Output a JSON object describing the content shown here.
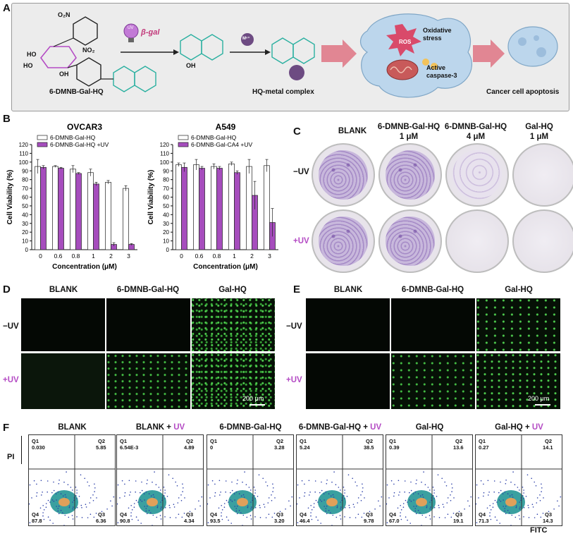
{
  "panels": {
    "A": "A",
    "B": "B",
    "C": "C",
    "D": "D",
    "E": "E",
    "F": "F"
  },
  "panelA": {
    "substituent_1": "O₂N",
    "substituent_2": "NO₂",
    "methoxy": "O",
    "ho_1": "HO",
    "ho_2": "HO",
    "oh": "OH",
    "compound_label": "6-DMNB-Gal-HQ",
    "uv_label": "UV",
    "enzyme_label": "β-gal",
    "hq_oh": "OH",
    "metal_label": "Mⁿ⁺",
    "complex_label": "HQ-metal complex",
    "ros_label": "ROS",
    "stress_label": "Oxidative stress",
    "caspase_label": "Active caspase-3",
    "outcome_label": "Cancer cell apoptosis"
  },
  "panelB": {
    "y_axis_label": "Cell Viability (%)",
    "x_axis_label": "Concentration (μM)",
    "charts": [
      {
        "title": "OVCAR3",
        "legend": [
          "6-DMNB-Gal-HQ",
          "6-DMNB-Gal-HQ +UV"
        ]
      },
      {
        "title": "A549",
        "legend": [
          "6-DMNB-Gal-HQ",
          "6-DMNB-Gal-CA4 +UV"
        ]
      }
    ]
  },
  "chart_data": [
    {
      "type": "bar",
      "title": "OVCAR3",
      "categories": [
        "0",
        "0.6",
        "0.8",
        "1",
        "2",
        "3"
      ],
      "series": [
        {
          "name": "6-DMNB-Gal-HQ",
          "values": [
            95,
            95,
            92,
            88,
            77,
            70
          ],
          "errors": [
            8,
            1,
            4,
            4,
            2,
            3
          ]
        },
        {
          "name": "6-DMNB-Gal-HQ +UV",
          "values": [
            94,
            93,
            87,
            75,
            6,
            6
          ],
          "errors": [
            2,
            1,
            1,
            2,
            2,
            1
          ]
        }
      ],
      "xlabel": "Concentration (μM)",
      "ylabel": "Cell Viability (%)",
      "ylim": [
        0,
        120
      ],
      "yticks": [
        "0",
        "10",
        "20",
        "30",
        "40",
        "50",
        "60",
        "70",
        "80",
        "90",
        "100",
        "110",
        "120"
      ],
      "colors": {
        "series1": "#ffffff",
        "series2": "#a64dbd"
      }
    },
    {
      "type": "bar",
      "title": "A549",
      "categories": [
        "0",
        "0.6",
        "0.8",
        "1",
        "2",
        "3"
      ],
      "series": [
        {
          "name": "6-DMNB-Gal-HQ",
          "values": [
            97,
            97,
            95,
            98,
            95,
            96
          ],
          "errors": [
            2,
            6,
            3,
            2,
            8,
            7
          ]
        },
        {
          "name": "6-DMNB-Gal-CA4 +UV",
          "values": [
            94,
            93,
            93,
            88,
            62,
            31
          ],
          "errors": [
            5,
            2,
            2,
            2,
            16,
            16
          ]
        }
      ],
      "xlabel": "Concentration (μM)",
      "ylabel": "Cell Viability (%)",
      "ylim": [
        0,
        120
      ],
      "yticks": [
        "0",
        "10",
        "20",
        "30",
        "40",
        "50",
        "60",
        "70",
        "80",
        "90",
        "100",
        "110",
        "120"
      ],
      "colors": {
        "series1": "#ffffff",
        "series2": "#a64dbd"
      }
    }
  ],
  "panelC": {
    "headers": [
      [
        "BLANK",
        ""
      ],
      [
        "6-DMNB-Gal-HQ",
        "1 μM"
      ],
      [
        "6-DMNB-Gal-HQ",
        "4 μM"
      ],
      [
        "Gal-HQ",
        "1 μM"
      ]
    ],
    "rows": [
      "−UV",
      "+UV"
    ]
  },
  "panelD": {
    "headers": [
      "BLANK",
      "6-DMNB-Gal-HQ",
      "Gal-HQ"
    ],
    "rows": [
      "−UV",
      "+UV"
    ],
    "scale_bar": "200 μm"
  },
  "panelE": {
    "headers": [
      "BLANK",
      "6-DMNB-Gal-HQ",
      "Gal-HQ"
    ],
    "rows": [
      "−UV",
      "+UV"
    ],
    "scale_bar": "200 μm"
  },
  "panelF": {
    "y_axis": "PI",
    "x_axis": "FITC",
    "plots": [
      {
        "title_main": "BLANK",
        "title_uv": "",
        "q1": "0.030",
        "q2": "5.85",
        "q3": "6.36",
        "q4": "87.8"
      },
      {
        "title_main": "BLANK + ",
        "title_uv": "UV",
        "q1": "6.54E-3",
        "q2": "4.89",
        "q3": "4.34",
        "q4": "90.8"
      },
      {
        "title_main": "6-DMNB-Gal-HQ",
        "title_uv": "",
        "q1": "0",
        "q2": "3.28",
        "q3": "3.20",
        "q4": "93.5"
      },
      {
        "title_main": "6-DMNB-Gal-HQ + ",
        "title_uv": "UV",
        "q1": "5.24",
        "q2": "38.5",
        "q3": "9.78",
        "q4": "46.4"
      },
      {
        "title_main": "Gal-HQ",
        "title_uv": "",
        "q1": "0.39",
        "q2": "13.6",
        "q3": "19.1",
        "q4": "67.0"
      },
      {
        "title_main": "Gal-HQ + ",
        "title_uv": "UV",
        "q1": "0.27",
        "q2": "14.1",
        "q3": "14.3",
        "q4": "71.3"
      }
    ],
    "quadrant_names": {
      "q1": "Q1",
      "q2": "Q2",
      "q3": "Q3",
      "q4": "Q4"
    }
  }
}
